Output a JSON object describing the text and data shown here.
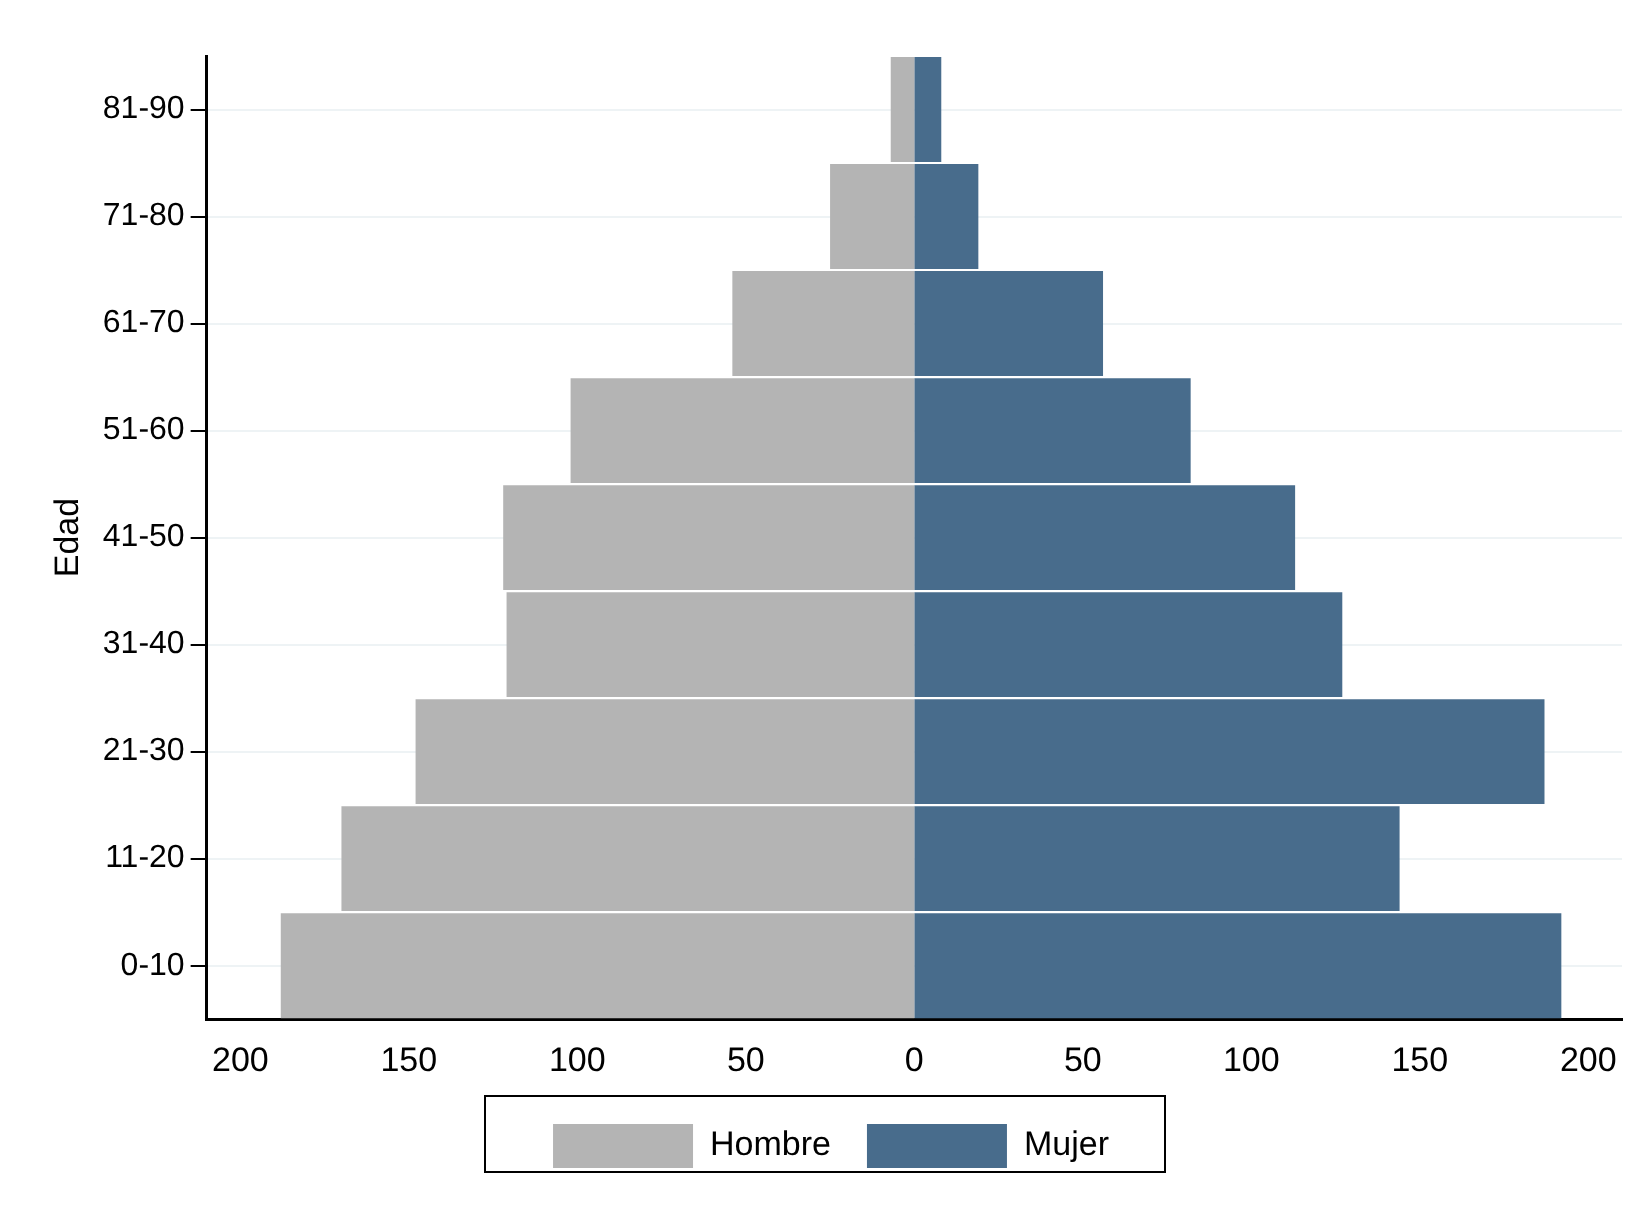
{
  "chart_data": {
    "type": "bar",
    "orientation": "horizontal",
    "stacked": true,
    "ylabel": "Edad",
    "categories": [
      "81-90",
      "71-80",
      "61-70",
      "51-60",
      "41-50",
      "31-40",
      "21-30",
      "11-20",
      "0-10"
    ],
    "series": [
      {
        "name": "Hombre",
        "color": "#b4b4b4",
        "values": [
          -7,
          -25,
          -54,
          -102,
          -122,
          -121,
          -148,
          -170,
          -188
        ]
      },
      {
        "name": "Mujer",
        "color": "#486c8c",
        "values": [
          8,
          19,
          56,
          82,
          113,
          127,
          187,
          144,
          192
        ]
      }
    ],
    "xlim": [
      -210,
      210
    ],
    "xticks": [
      {
        "value": -200,
        "label": "200"
      },
      {
        "value": -150,
        "label": "150"
      },
      {
        "value": -100,
        "label": "100"
      },
      {
        "value": -50,
        "label": "50"
      },
      0,
      50,
      100,
      150,
      200
    ],
    "grid": "y",
    "legend": "bottom"
  }
}
